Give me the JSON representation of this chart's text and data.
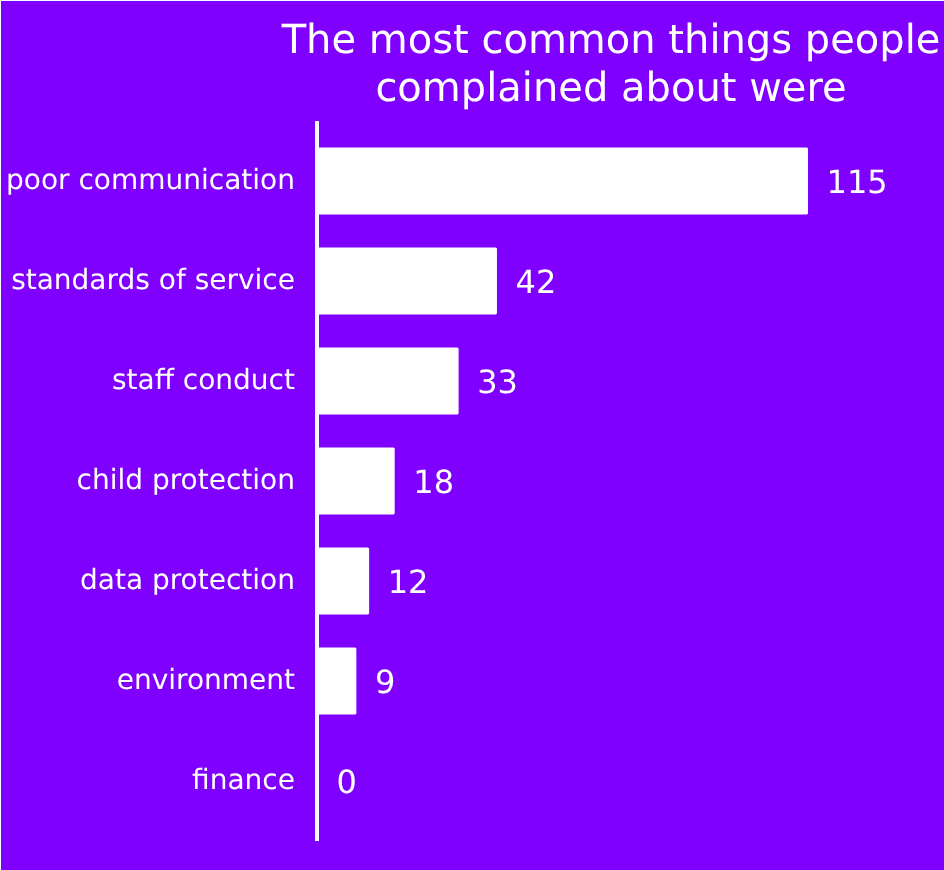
{
  "chart_data": {
    "type": "bar",
    "orientation": "horizontal",
    "title": "The most common things people complained about were",
    "categories": [
      "poor communication",
      "standards of service",
      "staff conduct",
      "child protection",
      "data protection",
      "environment",
      "finance"
    ],
    "values": [
      115,
      42,
      33,
      18,
      12,
      9,
      0
    ],
    "color": "#ffffff",
    "data_labels": true,
    "grid": false
  }
}
